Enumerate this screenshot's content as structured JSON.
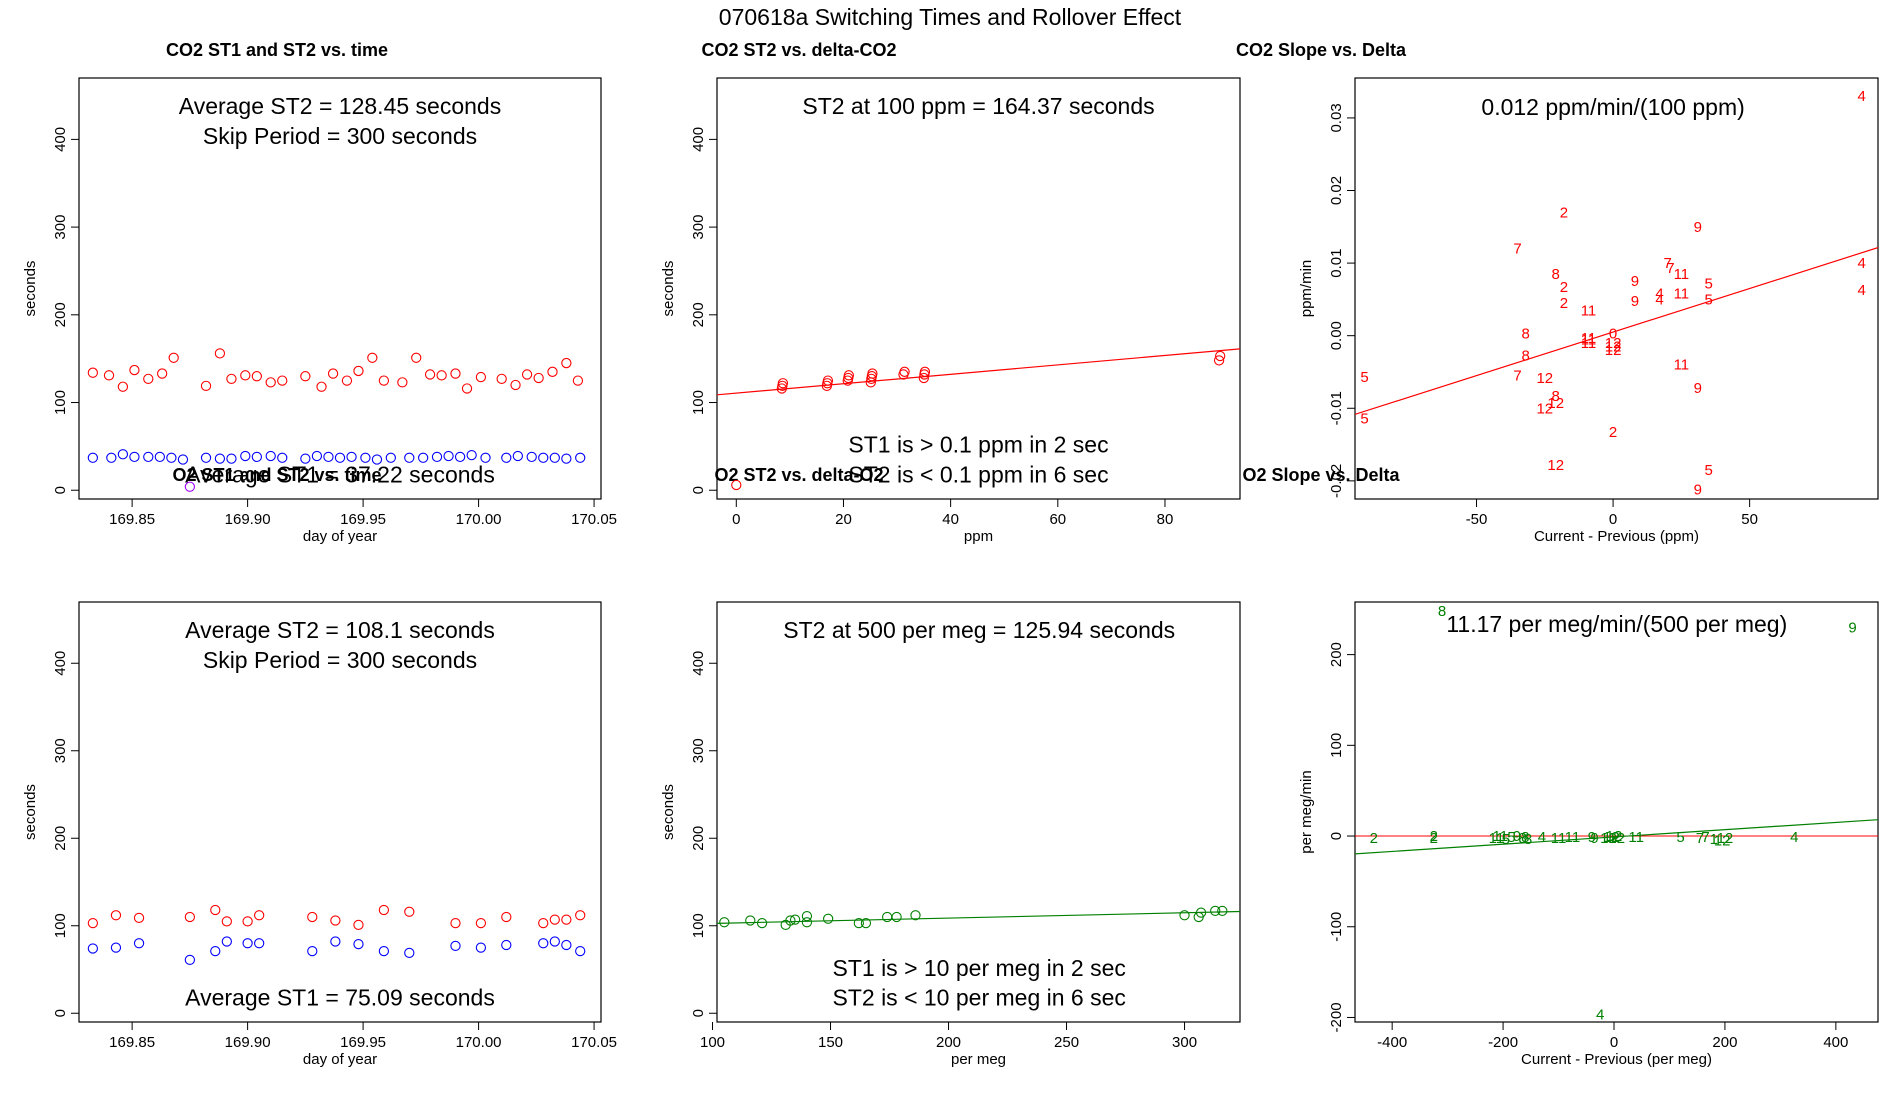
{
  "title": "070618a   Switching Times and Rollover Effect",
  "colors": {
    "red": "#ff0000",
    "blue": "#0000ff",
    "green": "#008000",
    "purple": "#a000ff"
  },
  "chart_data": [
    {
      "id": "co2-time",
      "type": "scatter",
      "title": "CO2 ST1 and ST2 vs. time",
      "xlabel": "day of year",
      "ylabel": "seconds",
      "xlim": [
        169.827,
        170.053
      ],
      "ylim": [
        -10,
        470
      ],
      "xticks": [
        169.85,
        169.9,
        169.95,
        170.0,
        170.05
      ],
      "xtick_labels": [
        "169.85",
        "169.90",
        "169.95",
        "170.00",
        "170.05"
      ],
      "yticks": [
        0,
        100,
        200,
        300,
        400
      ],
      "ytick_labels": [
        "0",
        "100",
        "200",
        "300",
        "400"
      ],
      "annotations": [
        {
          "text": "Average ST2 =  128.45  seconds",
          "x": 169.94,
          "y": 438
        },
        {
          "text": "Skip Period =  300  seconds",
          "x": 169.94,
          "y": 404
        },
        {
          "text": "Average ST1 =  37.22  seconds",
          "x": 169.94,
          "y": 18
        }
      ],
      "series": [
        {
          "name": "ST2",
          "marker": "circle",
          "color": "red",
          "x": [
            169.833,
            169.84,
            169.846,
            169.851,
            169.857,
            169.863,
            169.868,
            169.882,
            169.888,
            169.893,
            169.899,
            169.904,
            169.91,
            169.915,
            169.925,
            169.932,
            169.937,
            169.943,
            169.948,
            169.954,
            169.959,
            169.967,
            169.973,
            169.979,
            169.984,
            169.99,
            169.995,
            170.001,
            170.01,
            170.016,
            170.021,
            170.026,
            170.032,
            170.038,
            170.043
          ],
          "y": [
            134,
            131,
            118,
            137,
            127,
            133,
            151,
            119,
            156,
            127,
            131,
            130,
            123,
            125,
            130,
            118,
            133,
            125,
            136,
            151,
            125,
            123,
            151,
            132,
            131,
            133,
            116,
            129,
            127,
            120,
            132,
            128,
            135,
            145,
            125
          ]
        },
        {
          "name": "ST1",
          "marker": "circle",
          "color": "blue",
          "x": [
            169.833,
            169.841,
            169.846,
            169.851,
            169.857,
            169.862,
            169.867,
            169.872,
            169.882,
            169.888,
            169.893,
            169.899,
            169.904,
            169.91,
            169.915,
            169.925,
            169.93,
            169.935,
            169.94,
            169.945,
            169.951,
            169.956,
            169.962,
            169.97,
            169.976,
            169.982,
            169.987,
            169.992,
            169.997,
            170.003,
            170.012,
            170.017,
            170.023,
            170.028,
            170.033,
            170.038,
            170.044
          ],
          "y": [
            37,
            37,
            41,
            38,
            38,
            38,
            37,
            35,
            37,
            36,
            36,
            39,
            38,
            39,
            37,
            36,
            39,
            38,
            37,
            38,
            37,
            35,
            37,
            37,
            37,
            38,
            39,
            38,
            40,
            37,
            37,
            39,
            38,
            37,
            37,
            36,
            37
          ]
        },
        {
          "name": "ST1-low",
          "marker": "circle",
          "color": "purple",
          "x": [
            169.875
          ],
          "y": [
            4
          ]
        }
      ]
    },
    {
      "id": "co2-delta",
      "type": "scatter",
      "title": "CO2 ST2 vs. delta-CO2",
      "xlabel": "ppm",
      "ylabel": "seconds",
      "xlim": [
        -3.6,
        94
      ],
      "ylim": [
        -10,
        470
      ],
      "xticks": [
        0,
        20,
        40,
        60,
        80
      ],
      "xtick_labels": [
        "0",
        "20",
        "40",
        "60",
        "80"
      ],
      "yticks": [
        0,
        100,
        200,
        300,
        400
      ],
      "ytick_labels": [
        "0",
        "100",
        "200",
        "300",
        "400"
      ],
      "annotations": [
        {
          "text": "ST2 at 100 ppm =  164.37  seconds",
          "x": 45.2,
          "y": 438
        },
        {
          "text": "ST1 is > 0.1 ppm in 2 sec",
          "x": 45.2,
          "y": 52
        },
        {
          "text": "ST2 is < 0.1 ppm in 6 sec",
          "x": 45.2,
          "y": 18
        }
      ],
      "fit_line": {
        "color": "red",
        "intercept": 110.7,
        "slope": 0.537
      },
      "series": [
        {
          "name": "ST2",
          "marker": "circle",
          "color": "red",
          "x": [
            0,
            8.5,
            8.6,
            8.7,
            16.9,
            17.0,
            17.1,
            20.8,
            20.9,
            21.0,
            25.1,
            25.2,
            25.3,
            25.4,
            31.2,
            31.4,
            35.0,
            35.1,
            35.2,
            90.1,
            90.3
          ],
          "y": [
            6,
            116,
            119,
            122,
            119,
            122,
            125,
            125,
            128,
            131,
            123,
            127,
            130,
            133,
            132,
            135,
            128,
            132,
            135,
            148,
            153
          ]
        }
      ]
    },
    {
      "id": "co2-slope",
      "type": "scatter",
      "title": "CO2 Slope vs. Delta",
      "xlabel": "Current - Previous (ppm)",
      "ylabel": "ppm/min",
      "xlim": [
        -94.5,
        97
      ],
      "ylim": [
        -0.0225,
        0.0355
      ],
      "xticks": [
        -50,
        0,
        50
      ],
      "xtick_labels": [
        "-50",
        "0",
        "50"
      ],
      "yticks": [
        -0.02,
        -0.01,
        0.0,
        0.01,
        0.02,
        0.03
      ],
      "ytick_labels": [
        "-0.02",
        "-0.01",
        "0.00",
        "0.01",
        "0.02",
        "0.03"
      ],
      "annotations": [
        {
          "text": "0.012  ppm/min/(100 ppm)",
          "x": 0,
          "y": 0.0315
        }
      ],
      "fit_line": {
        "color": "red",
        "intercept": 0.0005,
        "slope": 0.00012
      },
      "series": [
        {
          "name": "labels",
          "marker": "text",
          "color": "red",
          "x": [
            -91,
            -91,
            -18,
            -35,
            -21,
            -18,
            -18,
            -32,
            -32,
            -35,
            -25,
            -21,
            -25,
            -21,
            -21,
            -9,
            -9,
            -9,
            -9,
            0,
            0,
            0,
            0,
            0,
            8,
            8,
            17,
            17,
            20,
            21,
            25,
            25,
            25,
            35,
            35,
            35,
            31,
            31,
            31,
            91,
            91,
            91
          ],
          "y": [
            -0.0057,
            -0.0114,
            0.017,
            0.012,
            0.0085,
            0.0067,
            0.0045,
            0.0003,
            -0.0027,
            -0.0055,
            -0.0058,
            -0.0083,
            -0.01,
            -0.0093,
            -0.0178,
            0.0035,
            -0.001,
            -0.0005,
            -0.0003,
            -0.001,
            -0.0015,
            -0.002,
            0.0003,
            -0.0133,
            0.0075,
            0.0048,
            0.0058,
            0.005,
            0.01,
            0.0093,
            0.0085,
            0.0058,
            -0.004,
            0.0072,
            0.005,
            -0.0185,
            0.015,
            -0.0072,
            -0.0212,
            0.033,
            0.01,
            0.0063
          ],
          "labels": [
            "5",
            "5",
            "2",
            "7",
            "8",
            "2",
            "2",
            "8",
            "8",
            "7",
            "12",
            "8",
            "12",
            "12",
            "12",
            "11",
            "11",
            "11",
            "11",
            "12",
            "12",
            "12",
            "0",
            "2",
            "9",
            "9",
            "4",
            "4",
            "7",
            "7",
            "11",
            "11",
            "11",
            "5",
            "5",
            "5",
            "9",
            "9",
            "9",
            "4",
            "4",
            "4"
          ]
        }
      ]
    },
    {
      "id": "o2-time",
      "type": "scatter",
      "title": "O2 ST1 and ST2 vs. time",
      "xlabel": "day of year",
      "ylabel": "seconds",
      "xlim": [
        169.827,
        170.053
      ],
      "ylim": [
        -10,
        470
      ],
      "xticks": [
        169.85,
        169.9,
        169.95,
        170.0,
        170.05
      ],
      "xtick_labels": [
        "169.85",
        "169.90",
        "169.95",
        "170.00",
        "170.05"
      ],
      "yticks": [
        0,
        100,
        200,
        300,
        400
      ],
      "ytick_labels": [
        "0",
        "100",
        "200",
        "300",
        "400"
      ],
      "annotations": [
        {
          "text": "Average ST2 =  108.1  seconds",
          "x": 169.94,
          "y": 438
        },
        {
          "text": "Skip Period =  300  seconds",
          "x": 169.94,
          "y": 404
        },
        {
          "text": "Average ST1 =  75.09  seconds",
          "x": 169.94,
          "y": 18
        }
      ],
      "series": [
        {
          "name": "ST2",
          "marker": "circle",
          "color": "red",
          "x": [
            169.833,
            169.843,
            169.853,
            169.875,
            169.886,
            169.891,
            169.9,
            169.905,
            169.928,
            169.938,
            169.948,
            169.959,
            169.97,
            169.99,
            170.001,
            170.012,
            170.028,
            170.033,
            170.038,
            170.044
          ],
          "y": [
            103,
            112,
            109,
            110,
            118,
            105,
            105,
            112,
            110,
            106,
            101,
            118,
            116,
            103,
            103,
            110,
            103,
            107,
            107,
            112
          ]
        },
        {
          "name": "ST1",
          "marker": "circle",
          "color": "blue",
          "x": [
            169.833,
            169.843,
            169.853,
            169.875,
            169.886,
            169.891,
            169.9,
            169.905,
            169.928,
            169.938,
            169.948,
            169.959,
            169.97,
            169.99,
            170.001,
            170.012,
            170.028,
            170.033,
            170.038,
            170.044
          ],
          "y": [
            74,
            75,
            80,
            61,
            71,
            82,
            80,
            80,
            71,
            82,
            79,
            71,
            69,
            77,
            75,
            78,
            80,
            82,
            78,
            71
          ]
        }
      ]
    },
    {
      "id": "o2-delta",
      "type": "scatter",
      "title": "O2 ST2 vs. delta-O2",
      "xlabel": "per meg",
      "ylabel": "seconds",
      "xlim": [
        101.9,
        323.5
      ],
      "ylim": [
        -10,
        470
      ],
      "xticks": [
        100,
        150,
        200,
        250,
        300
      ],
      "xtick_labels": [
        "100",
        "150",
        "200",
        "250",
        "300"
      ],
      "yticks": [
        0,
        100,
        200,
        300,
        400
      ],
      "ytick_labels": [
        "0",
        "100",
        "200",
        "300",
        "400"
      ],
      "annotations": [
        {
          "text": "ST2 at 500 per meg =  125.94  seconds",
          "x": 213,
          "y": 438
        },
        {
          "text": "ST1 is > 10 per meg in 2 sec",
          "x": 213,
          "y": 52
        },
        {
          "text": "ST2 is < 10 per meg in 6 sec",
          "x": 213,
          "y": 18
        }
      ],
      "fit_line": {
        "color": "green",
        "intercept": 96.5,
        "slope": 0.0612
      },
      "series": [
        {
          "name": "ST2",
          "marker": "circle",
          "color": "green",
          "x": [
            105,
            116,
            121,
            131,
            133,
            135,
            140,
            140,
            149,
            162,
            165,
            174,
            178,
            186,
            300,
            306,
            307,
            313,
            316
          ],
          "y": [
            104,
            106,
            103,
            101,
            106,
            107,
            111,
            104,
            108,
            103,
            103,
            110,
            110,
            112,
            112,
            110,
            115,
            117,
            117
          ]
        }
      ]
    },
    {
      "id": "o2-slope",
      "type": "scatter",
      "title": "O2 Slope vs. Delta",
      "xlabel": "Current - Previous (per meg)",
      "ylabel": "per meg/min",
      "xlim": [
        -467,
        476
      ],
      "ylim": [
        -205,
        258
      ],
      "xticks": [
        -400,
        -200,
        0,
        200,
        400
      ],
      "xtick_labels": [
        "-400",
        "-200",
        "0",
        "200",
        "400"
      ],
      "yticks": [
        -200,
        -100,
        0,
        100,
        200
      ],
      "ytick_labels": [
        "-200",
        "-100",
        "0",
        "100",
        "200"
      ],
      "annotations": [
        {
          "text": "11.17  per meg/min/(500 per meg)",
          "x": 5,
          "y": 234
        }
      ],
      "fit_line": {
        "color": "green",
        "intercept": -1,
        "slope": 0.04
      },
      "zero_line": {
        "color": "red",
        "y": 0
      },
      "series": [
        {
          "name": "labels",
          "marker": "text",
          "color": "green",
          "x": [
            -433,
            -325,
            -325,
            -310,
            -212,
            -205,
            -195,
            -185,
            -175,
            -165,
            -160,
            -155,
            -130,
            -100,
            -75,
            -40,
            -35,
            -10,
            -5,
            0,
            5,
            40,
            120,
            155,
            165,
            180,
            200,
            195,
            325,
            -25,
            430
          ],
          "y": [
            -2,
            -2,
            0,
            248,
            -2,
            0,
            -3,
            -1,
            0,
            -2,
            -1,
            -3,
            -1,
            -2,
            -1,
            -1,
            -2,
            -2,
            -1,
            0,
            -2,
            -1,
            -1,
            -2,
            -1,
            -3,
            -2,
            -5,
            -1,
            -197,
            230
          ],
          "labels": [
            "2",
            "2",
            "2",
            "8",
            "11",
            "11",
            "5",
            "5",
            "9",
            "8",
            "8",
            "8",
            "4",
            "11",
            "11",
            "9",
            "9",
            "12",
            "12",
            "12",
            "12",
            "11",
            "5",
            "7",
            "7",
            "1",
            "12",
            "12",
            "4",
            "4",
            "9"
          ]
        }
      ]
    }
  ]
}
